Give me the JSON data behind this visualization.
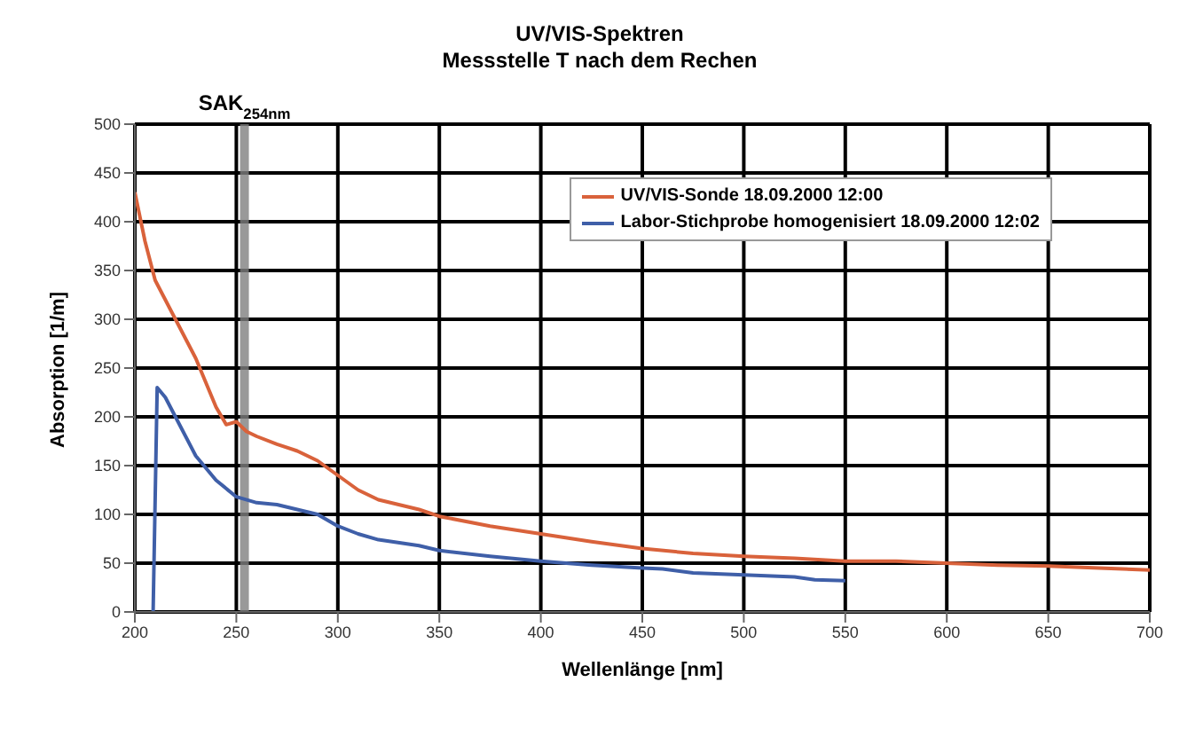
{
  "chart_data": {
    "type": "line",
    "title": "UV/VIS-Spektren",
    "subtitle": "Messstelle T nach dem Rechen",
    "xlabel": "Wellenlänge [nm]",
    "ylabel": "Absorption [1/m]",
    "xlim": [
      200,
      700
    ],
    "xticks": [
      200,
      250,
      300,
      350,
      400,
      450,
      500,
      550,
      600,
      650,
      700
    ],
    "ylim": [
      0,
      500
    ],
    "yticks": [
      0,
      50,
      100,
      150,
      200,
      250,
      300,
      350,
      400,
      450,
      500
    ],
    "grid": true,
    "legend": "top right",
    "marker": "none",
    "line_style": "solid",
    "ref_lines": [
      {
        "axis": "x",
        "value": 254,
        "label": "SAK$_{254nm}$",
        "color": "#808080"
      }
    ],
    "series": [
      {
        "name": "UV/VIS-Sonde 18.09.2000 12:00",
        "color": "#d9623b",
        "x": [
          200,
          205,
          210,
          220,
          230,
          240,
          245,
          250,
          255,
          260,
          270,
          280,
          290,
          300,
          310,
          320,
          340,
          350,
          375,
          400,
          425,
          450,
          475,
          500,
          525,
          550,
          575,
          600,
          625,
          650,
          675,
          700
        ],
        "values": [
          430,
          380,
          340,
          300,
          260,
          210,
          192,
          195,
          185,
          180,
          172,
          165,
          155,
          140,
          125,
          115,
          105,
          98,
          88,
          80,
          72,
          65,
          60,
          57,
          55,
          52,
          52,
          50,
          48,
          47,
          45,
          43
        ]
      },
      {
        "name": "Labor-Stichprobe homogenisiert 18.09.2000 12:02",
        "color": "#3f5fa8",
        "x": [
          209,
          211,
          215,
          220,
          230,
          240,
          250,
          260,
          270,
          280,
          290,
          300,
          310,
          320,
          340,
          350,
          375,
          400,
          425,
          450,
          460,
          475,
          500,
          525,
          535,
          550
        ],
        "values": [
          0,
          230,
          220,
          200,
          160,
          135,
          118,
          112,
          110,
          105,
          100,
          88,
          80,
          74,
          68,
          63,
          57,
          52,
          48,
          45,
          44,
          40,
          38,
          36,
          33,
          32
        ]
      }
    ]
  }
}
